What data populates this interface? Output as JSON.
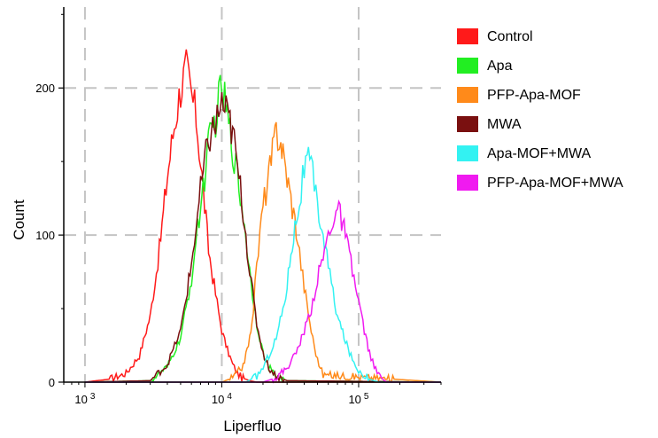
{
  "chart_data": {
    "type": "line",
    "title": "",
    "xlabel": "Liperfluo",
    "ylabel": "Count",
    "x_scale": "log",
    "xlim": [
      700,
      400000
    ],
    "ylim": [
      0,
      255
    ],
    "grid": true,
    "legend_position": "right",
    "x_ticks": [
      {
        "value": 1000,
        "base": "10",
        "exp": "3"
      },
      {
        "value": 10000,
        "base": "10",
        "exp": "4"
      },
      {
        "value": 100000,
        "base": "10",
        "exp": "5"
      }
    ],
    "y_ticks": [
      {
        "value": 0,
        "label": "0"
      },
      {
        "value": 100,
        "label": "100"
      },
      {
        "value": 200,
        "label": "200"
      }
    ],
    "series": [
      {
        "name": "Control",
        "color": "#ff1a1a",
        "x": [
          1000,
          1500,
          2000,
          2500,
          3000,
          3500,
          4000,
          4500,
          5000,
          5500,
          6000,
          6500,
          7000,
          7500,
          8000,
          9000,
          10000,
          11000,
          12000,
          13000,
          14000,
          16000,
          18000,
          20000,
          25000,
          50000,
          400000
        ],
        "y": [
          0,
          2,
          6,
          18,
          45,
          90,
          140,
          175,
          200,
          212,
          195,
          180,
          150,
          120,
          90,
          60,
          35,
          22,
          12,
          6,
          3,
          1,
          0,
          0,
          0,
          0,
          0
        ]
      },
      {
        "name": "Apa",
        "color": "#22ee22",
        "x": [
          1000,
          3000,
          4000,
          5000,
          6000,
          7000,
          8000,
          9000,
          10000,
          11000,
          12000,
          13000,
          14000,
          15000,
          16000,
          18000,
          20000,
          22000,
          25000,
          30000,
          400000
        ],
        "y": [
          0,
          1,
          10,
          30,
          70,
          120,
          160,
          180,
          200,
          180,
          160,
          140,
          120,
          100,
          75,
          40,
          20,
          10,
          4,
          1,
          0
        ]
      },
      {
        "name": "PFP-Apa-MOF",
        "color": "#ff8a1a",
        "x": [
          1000,
          10000,
          12000,
          14000,
          15000,
          16000,
          17000,
          18000,
          19000,
          20000,
          22000,
          24000,
          25000,
          27000,
          28000,
          30000,
          32000,
          35000,
          38000,
          40000,
          45000,
          50000,
          55000,
          400000
        ],
        "y": [
          0,
          0,
          3,
          10,
          18,
          30,
          50,
          80,
          100,
          120,
          140,
          160,
          172,
          165,
          155,
          140,
          125,
          105,
          80,
          65,
          35,
          15,
          5,
          0
        ]
      },
      {
        "name": "MWA",
        "color": "#7a1010",
        "x": [
          1000,
          3000,
          4000,
          5000,
          6000,
          7000,
          8000,
          9000,
          10000,
          11000,
          12000,
          13000,
          14000,
          15000,
          16000,
          18000,
          20000,
          22000,
          25000,
          30000,
          400000
        ],
        "y": [
          0,
          1,
          12,
          35,
          80,
          130,
          165,
          175,
          190,
          180,
          170,
          145,
          125,
          100,
          75,
          40,
          20,
          10,
          4,
          1,
          0
        ]
      },
      {
        "name": "Apa-MOF+MWA",
        "color": "#33f2f2",
        "x": [
          1000,
          15000,
          18000,
          20000,
          22000,
          25000,
          28000,
          30000,
          32000,
          35000,
          38000,
          40000,
          42000,
          45000,
          50000,
          55000,
          60000,
          65000,
          70000,
          80000,
          90000,
          100000,
          110000,
          120000,
          140000,
          400000
        ],
        "y": [
          0,
          0,
          4,
          10,
          18,
          30,
          50,
          65,
          90,
          110,
          130,
          145,
          150,
          145,
          120,
          100,
          80,
          60,
          45,
          28,
          15,
          8,
          5,
          2,
          0,
          0
        ]
      },
      {
        "name": "PFP-Apa-MOF+MWA",
        "color": "#f01af0",
        "x": [
          1000,
          20000,
          25000,
          30000,
          35000,
          40000,
          45000,
          50000,
          55000,
          60000,
          65000,
          70000,
          75000,
          80000,
          90000,
          100000,
          110000,
          120000,
          130000,
          140000,
          150000,
          160000,
          400000
        ],
        "y": [
          0,
          0,
          3,
          10,
          20,
          35,
          50,
          70,
          85,
          100,
          112,
          118,
          110,
          100,
          75,
          55,
          35,
          20,
          10,
          5,
          2,
          0,
          0
        ]
      }
    ]
  }
}
